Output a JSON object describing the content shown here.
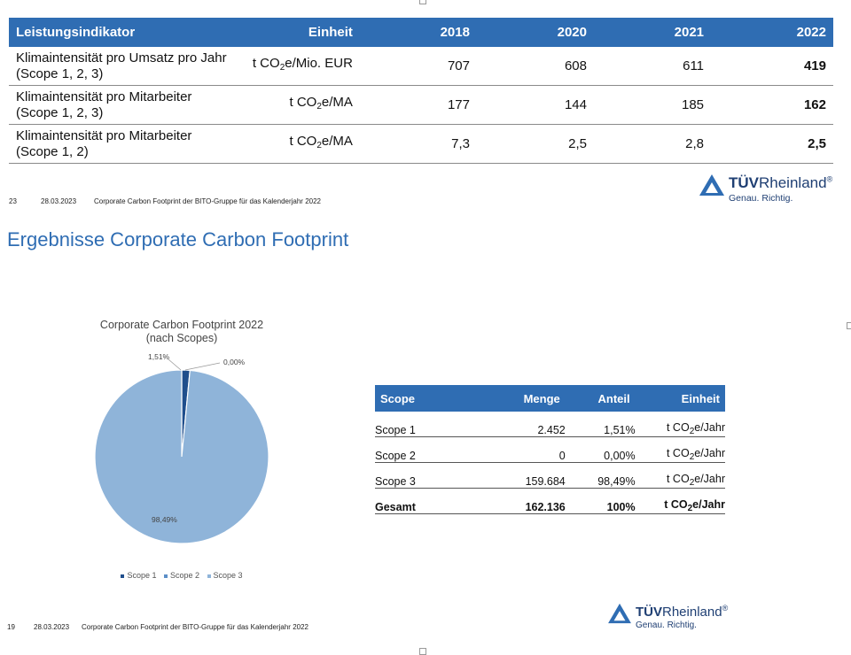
{
  "kpi_table": {
    "headers": [
      "Leistungsindikator",
      "Einheit",
      "2018",
      "2020",
      "2021",
      "2022"
    ],
    "rows": [
      {
        "indicator_line1": "Klimaintensität pro Umsatz pro Jahr",
        "indicator_line2": "(Scope 1, 2, 3)",
        "unit_pre": "t CO",
        "unit_sub": "2",
        "unit_post": "e/Mio. EUR",
        "v2018": "707",
        "v2020": "608",
        "v2021": "611",
        "v2022": "419"
      },
      {
        "indicator_line1": "Klimaintensität pro Mitarbeiter",
        "indicator_line2": "(Scope 1, 2, 3)",
        "unit_pre": "t CO",
        "unit_sub": "2",
        "unit_post": "e/MA",
        "v2018": "177",
        "v2020": "144",
        "v2021": "185",
        "v2022": "162"
      },
      {
        "indicator_line1": "Klimaintensität pro Mitarbeiter",
        "indicator_line2": "(Scope 1, 2)",
        "unit_pre": "t CO",
        "unit_sub": "2",
        "unit_post": "e/MA",
        "v2018": "7,3",
        "v2020": "2,5",
        "v2021": "2,8",
        "v2022": "2,5"
      }
    ]
  },
  "footer_top": {
    "page": "23",
    "date": "28.03.2023",
    "text": "Corporate Carbon Footprint der BITO-Gruppe für das Kalenderjahr 2022"
  },
  "footer_bottom": {
    "page": "19",
    "date": "28.03.2023",
    "text": "Corporate Carbon Footprint der BITO-Gruppe für das Kalenderjahr 2022"
  },
  "logo": {
    "brand_bold": "TÜV",
    "brand_regular": "Rheinland",
    "registered": "®",
    "tagline": "Genau. Richtig."
  },
  "slide_title": "Ergebnisse Corporate Carbon Footprint",
  "chart_data": {
    "type": "pie",
    "title": "Corporate Carbon Footprint 2022",
    "subtitle": "(nach Scopes)",
    "categories": [
      "Scope 1",
      "Scope 2",
      "Scope 3"
    ],
    "values": [
      1.51,
      0.0,
      98.49
    ],
    "labels": [
      "1,51%",
      "0,00%",
      "98,49%"
    ],
    "colors": [
      "#1f4e8c",
      "#5b8ec7",
      "#8fb4d9"
    ],
    "legend": "bottom"
  },
  "scope_table": {
    "headers": [
      "Scope",
      "Menge",
      "Anteil",
      "Einheit"
    ],
    "rows": [
      {
        "scope": "Scope 1",
        "menge": "2.452",
        "anteil": "1,51%",
        "unit_pre": "t CO",
        "unit_sub": "2",
        "unit_post": "e/Jahr"
      },
      {
        "scope": "Scope 2",
        "menge": "0",
        "anteil": "0,00%",
        "unit_pre": "t CO",
        "unit_sub": "2",
        "unit_post": "e/Jahr"
      },
      {
        "scope": "Scope 3",
        "menge": "159.684",
        "anteil": "98,49%",
        "unit_pre": "t CO",
        "unit_sub": "2",
        "unit_post": "e/Jahr"
      }
    ],
    "total": {
      "scope": "Gesamt",
      "menge": "162.136",
      "anteil": "100%",
      "unit_pre": "t CO",
      "unit_sub": "2",
      "unit_post": "e/Jahr"
    }
  }
}
